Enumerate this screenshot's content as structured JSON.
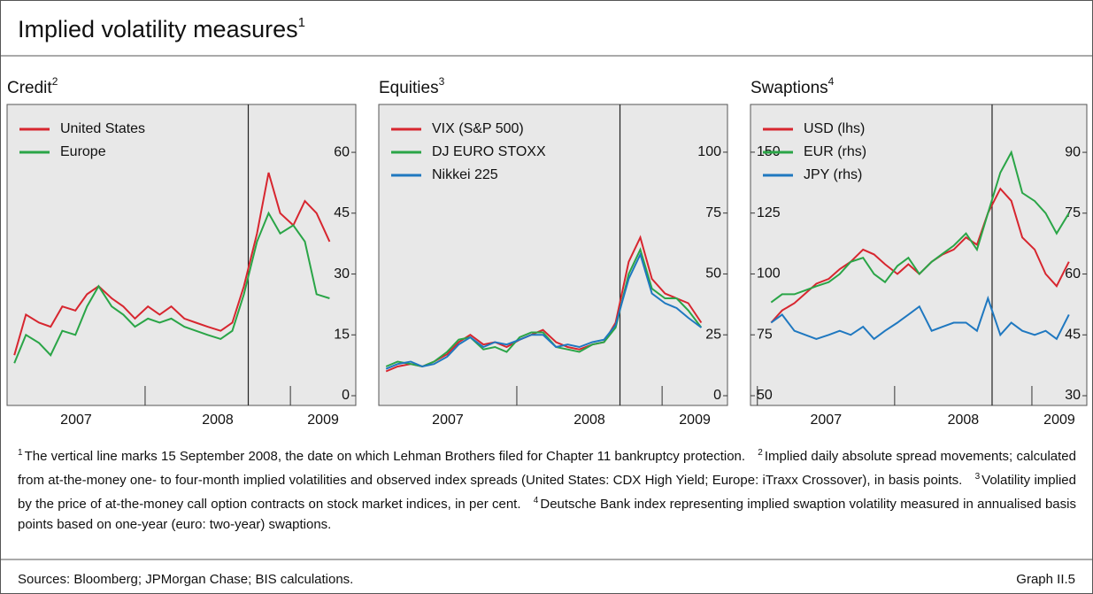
{
  "title": "Implied volatility measures",
  "title_note": "1",
  "chart_data": [
    {
      "type": "line",
      "title": "Credit",
      "title_note": "2",
      "x": [
        2007.1,
        2007.18,
        2007.27,
        2007.35,
        2007.43,
        2007.52,
        2007.6,
        2007.68,
        2007.77,
        2007.85,
        2007.93,
        2008.02,
        2008.1,
        2008.18,
        2008.27,
        2008.35,
        2008.43,
        2008.52,
        2008.6,
        2008.68,
        2008.77,
        2008.85,
        2008.93,
        2009.02,
        2009.1,
        2009.18,
        2009.27
      ],
      "xlim": [
        2007.05,
        2009.45
      ],
      "xticks": [
        {
          "value": 2007,
          "label": "2007"
        },
        {
          "value": 2008,
          "label": "2008"
        },
        {
          "value": 2009,
          "label": "2009"
        }
      ],
      "ylim": [
        -2.4,
        71.8
      ],
      "yticks": [
        0,
        15,
        30,
        45,
        60
      ],
      "yaxis_side": "right",
      "vline": 2008.71,
      "legend": "upper left",
      "series": [
        {
          "name": "United States",
          "color": "#d7262f",
          "values": [
            10,
            20,
            18,
            17,
            22,
            21,
            25,
            27,
            24,
            22,
            19,
            22,
            20,
            22,
            19,
            18,
            17,
            16,
            18,
            27,
            40,
            55,
            45,
            42,
            48,
            45,
            38
          ]
        },
        {
          "name": "Europe",
          "color": "#2aa547",
          "values": [
            8,
            15,
            13,
            10,
            16,
            15,
            22,
            27,
            22,
            20,
            17,
            19,
            18,
            19,
            17,
            16,
            15,
            14,
            16,
            25,
            38,
            45,
            40,
            42,
            38,
            25,
            24
          ]
        }
      ]
    },
    {
      "type": "line",
      "title": "Equities",
      "title_note": "3",
      "x": [
        2007.1,
        2007.18,
        2007.27,
        2007.35,
        2007.43,
        2007.52,
        2007.6,
        2007.68,
        2007.77,
        2007.85,
        2007.93,
        2008.02,
        2008.1,
        2008.18,
        2008.27,
        2008.35,
        2008.43,
        2008.52,
        2008.6,
        2008.68,
        2008.77,
        2008.85,
        2008.93,
        2009.02,
        2009.1,
        2009.18,
        2009.27
      ],
      "xlim": [
        2007.05,
        2009.45
      ],
      "xticks": [
        {
          "value": 2007,
          "label": "2007"
        },
        {
          "value": 2008,
          "label": "2008"
        },
        {
          "value": 2009,
          "label": "2009"
        }
      ],
      "ylim": [
        -4,
        119.6
      ],
      "yticks": [
        0,
        25,
        50,
        75,
        100
      ],
      "yaxis_side": "right",
      "vline": 2008.71,
      "legend": "upper left",
      "series": [
        {
          "name": "VIX (S&P 500)",
          "color": "#d7262f",
          "values": [
            10,
            12,
            13,
            12,
            14,
            17,
            22,
            25,
            21,
            22,
            20,
            23,
            25,
            27,
            22,
            20,
            19,
            21,
            22,
            30,
            55,
            65,
            48,
            42,
            40,
            38,
            30
          ]
        },
        {
          "name": "DJ EURO STOXX",
          "color": "#2aa547",
          "values": [
            12,
            14,
            13,
            12,
            14,
            18,
            23,
            24,
            19,
            20,
            18,
            24,
            26,
            26,
            20,
            19,
            18,
            21,
            22,
            28,
            50,
            60,
            44,
            40,
            40,
            35,
            28
          ]
        },
        {
          "name": "Nikkei 225",
          "color": "#1f78c0",
          "values": [
            11,
            13,
            14,
            12,
            13,
            16,
            21,
            24,
            20,
            22,
            21,
            23,
            25,
            25,
            20,
            21,
            20,
            22,
            23,
            29,
            48,
            58,
            42,
            38,
            36,
            32,
            28
          ]
        }
      ]
    },
    {
      "type": "line",
      "title": "Swaptions",
      "title_note": "4",
      "x": [
        2007.1,
        2007.18,
        2007.27,
        2007.35,
        2007.43,
        2007.52,
        2007.6,
        2007.68,
        2007.77,
        2007.85,
        2007.93,
        2008.02,
        2008.1,
        2008.18,
        2008.27,
        2008.35,
        2008.43,
        2008.52,
        2008.6,
        2008.68,
        2008.77,
        2008.85,
        2008.93,
        2009.02,
        2009.1,
        2009.18,
        2009.27
      ],
      "xlim": [
        2006.95,
        2009.4
      ],
      "xticks": [
        {
          "value": 2007,
          "label": "2007"
        },
        {
          "value": 2008,
          "label": "2008"
        },
        {
          "value": 2009,
          "label": "2009"
        }
      ],
      "ylim": [
        46,
        169.6
      ],
      "yticks": [
        50,
        75,
        100,
        125,
        150
      ],
      "yaxis_side": "left",
      "y2lim": [
        27.6,
        101.8
      ],
      "y2ticks": [
        30,
        45,
        60,
        75,
        90
      ],
      "vline": 2008.71,
      "legend": "upper left",
      "series": [
        {
          "name": "USD (lhs)",
          "color": "#d7262f",
          "values": [
            80,
            85,
            88,
            92,
            96,
            98,
            102,
            105,
            110,
            108,
            104,
            100,
            104,
            100,
            105,
            108,
            110,
            115,
            112,
            125,
            135,
            130,
            115,
            110,
            100,
            95,
            105
          ]
        },
        {
          "name": "EUR (rhs)",
          "color": "#2aa547",
          "axis": "y2",
          "values": [
            53,
            55,
            55,
            56,
            57,
            58,
            60,
            63,
            64,
            60,
            58,
            62,
            64,
            60,
            63,
            65,
            67,
            70,
            66,
            75,
            85,
            90,
            80,
            78,
            75,
            70,
            75
          ]
        },
        {
          "name": "JPY (rhs)",
          "color": "#1f78c0",
          "axis": "y2",
          "values": [
            48,
            50,
            46,
            45,
            44,
            45,
            46,
            45,
            47,
            44,
            46,
            48,
            50,
            52,
            46,
            47,
            48,
            48,
            46,
            54,
            45,
            48,
            46,
            45,
            46,
            44,
            50
          ]
        }
      ]
    }
  ],
  "footnotes": [
    {
      "marker": "1",
      "text": "The vertical line marks 15 September 2008, the date on which Lehman Brothers filed for Chapter 11 bankruptcy protection."
    },
    {
      "marker": "2",
      "text": "Implied daily absolute spread movements; calculated from at-the-money one- to four-month implied volatilities and observed index spreads (United States: CDX High Yield; Europe: iTraxx Crossover), in basis points."
    },
    {
      "marker": "3",
      "text": "Volatility implied by the price of at-the-money call option contracts on stock market indices, in per cent."
    },
    {
      "marker": "4",
      "text": "Deutsche Bank index representing implied swaption volatility measured in annualised basis points based on one-year (euro: two-year) swaptions."
    }
  ],
  "sources": "Sources: Bloomberg; JPMorgan Chase; BIS calculations.",
  "graph_label": "Graph II.5"
}
